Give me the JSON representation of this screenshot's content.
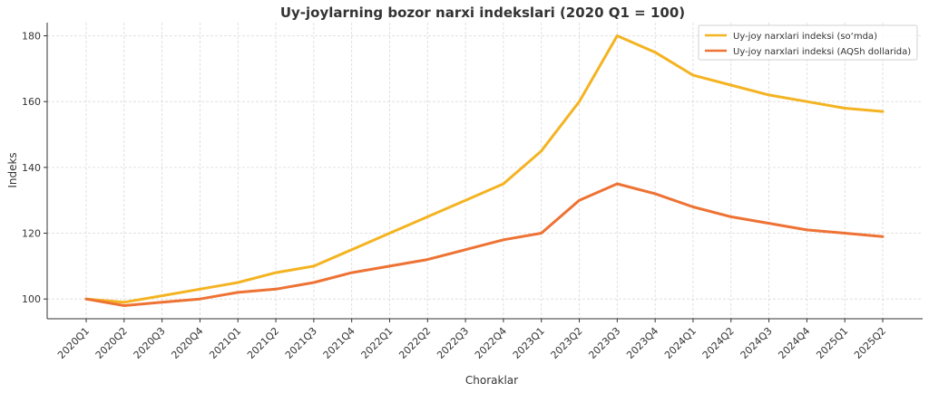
{
  "chart_data": {
    "type": "line",
    "title": "Uy-joylarning bozor narxi indekslari (2020 Q1 = 100)",
    "xlabel": "Choraklar",
    "ylabel": "Indeks",
    "ylim": [
      94,
      184
    ],
    "yticks": [
      100,
      120,
      140,
      160,
      180
    ],
    "grid": true,
    "legend_position": "top-right",
    "categories": [
      "2020Q1",
      "2020Q2",
      "2020Q3",
      "2020Q4",
      "2021Q1",
      "2021Q2",
      "2021Q3",
      "2021Q4",
      "2022Q1",
      "2022Q2",
      "2022Q3",
      "2022Q4",
      "2023Q1",
      "2023Q2",
      "2023Q3",
      "2023Q4",
      "2024Q1",
      "2024Q2",
      "2024Q3",
      "2024Q4",
      "2025Q1",
      "2025Q2"
    ],
    "series": [
      {
        "name": "Uy-joy narxlari indeksi (so‘mda)",
        "color": "#f4b321",
        "values": [
          100,
          99,
          101,
          103,
          105,
          108,
          110,
          115,
          120,
          125,
          130,
          135,
          145,
          160,
          180,
          175,
          168,
          165,
          162,
          160,
          158,
          157
        ]
      },
      {
        "name": "Uy-joy narxlari indeksi (AQSh dollarida)",
        "color": "#ee7234",
        "values": [
          100,
          98,
          99,
          100,
          102,
          103,
          105,
          108,
          110,
          112,
          115,
          118,
          120,
          130,
          135,
          132,
          128,
          125,
          123,
          121,
          120,
          119
        ]
      }
    ]
  }
}
